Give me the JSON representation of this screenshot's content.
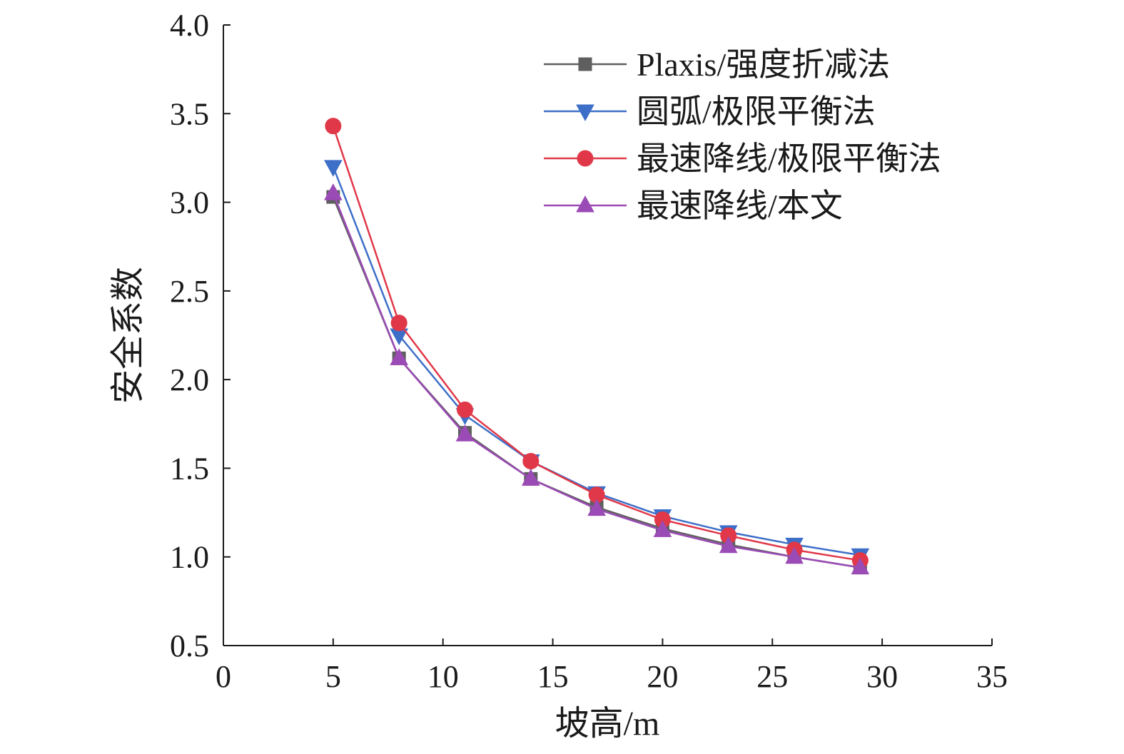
{
  "chart_data": {
    "type": "line",
    "xlabel": "坡高/m",
    "ylabel": "安全系数",
    "xlim": [
      0,
      35
    ],
    "ylim": [
      0.5,
      4.0
    ],
    "xticks": [
      "0",
      "5",
      "10",
      "15",
      "20",
      "25",
      "30",
      "35"
    ],
    "yticks": [
      "0.5",
      "1.0",
      "1.5",
      "2.0",
      "2.5",
      "3.0",
      "3.5",
      "4.0"
    ],
    "xtick_values": [
      0,
      5,
      10,
      15,
      20,
      25,
      30,
      35
    ],
    "ytick_values": [
      0.5,
      1.0,
      1.5,
      2.0,
      2.5,
      3.0,
      3.5,
      4.0
    ],
    "grid": false,
    "legend_position": "top-right",
    "x": [
      5,
      8,
      11,
      14,
      17,
      20,
      23,
      26,
      29
    ],
    "series": [
      {
        "name": "Plaxis/强度折减法",
        "color": "#5f5f5f",
        "marker": "square",
        "values": [
          3.03,
          2.12,
          1.7,
          1.44,
          1.28,
          1.16,
          1.07,
          1.0,
          0.94
        ]
      },
      {
        "name": "圆弧/极限平衡法",
        "color": "#3d6fc8",
        "marker": "triangle-down",
        "values": [
          3.2,
          2.25,
          1.8,
          1.54,
          1.36,
          1.23,
          1.14,
          1.07,
          1.01
        ]
      },
      {
        "name": "最速降线/极限平衡法",
        "color": "#e03848",
        "marker": "circle",
        "values": [
          3.43,
          2.32,
          1.83,
          1.54,
          1.35,
          1.21,
          1.12,
          1.04,
          0.98
        ]
      },
      {
        "name": "最速降线/本文",
        "color": "#9b4bb5",
        "marker": "triangle-up",
        "values": [
          3.05,
          2.12,
          1.69,
          1.44,
          1.27,
          1.15,
          1.06,
          1.0,
          0.94
        ]
      }
    ]
  }
}
